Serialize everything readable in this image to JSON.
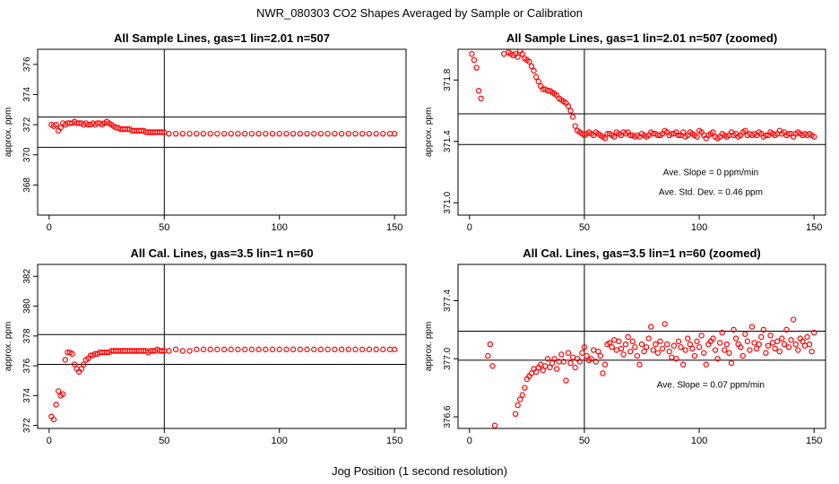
{
  "figure": {
    "title": "NWR_080303  CO2 Shapes Averaged by Sample or Calibration",
    "xlabel": "Jog Position (1 second resolution)"
  },
  "colors": {
    "points": "#ff0000",
    "axes": "#000000",
    "background": "#ffffff"
  },
  "chart_data": [
    {
      "type": "scatter",
      "title": "All Sample Lines, gas=1 lin=2.01 n=507",
      "ylabel": "approx. ppm",
      "xlim": [
        -5,
        155
      ],
      "ylim": [
        366,
        377
      ],
      "xticks": [
        "0",
        "50",
        "100",
        "150"
      ],
      "yticks": [
        "368",
        "370",
        "372",
        "374",
        "376"
      ],
      "vline": 50,
      "hlines": [
        370.5,
        372.5
      ],
      "annotations": [],
      "series": [
        {
          "x": [
            1,
            2,
            3,
            4,
            5,
            6,
            7,
            8,
            9,
            10,
            11,
            12,
            13,
            14,
            15,
            16,
            17,
            18,
            19,
            20,
            21,
            22,
            23,
            24,
            25,
            26,
            27,
            28,
            29,
            30,
            31,
            32,
            33,
            34,
            35,
            36,
            37,
            38,
            39,
            40,
            41,
            42,
            43,
            44,
            45,
            46,
            47,
            48,
            49,
            50,
            52,
            55,
            58,
            61,
            64,
            67,
            70,
            73,
            76,
            79,
            82,
            85,
            88,
            91,
            94,
            97,
            100,
            103,
            106,
            109,
            112,
            115,
            118,
            121,
            124,
            127,
            130,
            133,
            136,
            139,
            142,
            145,
            148,
            150
          ],
          "y": [
            372.0,
            371.9,
            372.0,
            371.6,
            371.8,
            372.1,
            372.0,
            372.1,
            372.1,
            372.1,
            372.2,
            372.1,
            372.1,
            372.1,
            372.0,
            372.1,
            372.0,
            372.0,
            372.1,
            372.0,
            372.1,
            372.1,
            372.0,
            372.1,
            372.2,
            372.1,
            372.0,
            371.9,
            371.8,
            371.8,
            371.7,
            371.7,
            371.7,
            371.7,
            371.7,
            371.6,
            371.6,
            371.6,
            371.6,
            371.6,
            371.6,
            371.5,
            371.5,
            371.5,
            371.5,
            371.5,
            371.5,
            371.5,
            371.5,
            371.5,
            371.4,
            371.4,
            371.4,
            371.4,
            371.4,
            371.4,
            371.4,
            371.4,
            371.4,
            371.4,
            371.4,
            371.4,
            371.4,
            371.4,
            371.4,
            371.4,
            371.4,
            371.4,
            371.4,
            371.4,
            371.4,
            371.4,
            371.4,
            371.4,
            371.4,
            371.4,
            371.4,
            371.4,
            371.4,
            371.4,
            371.4,
            371.4,
            371.4,
            371.4
          ]
        }
      ]
    },
    {
      "type": "scatter",
      "title": "All Sample Lines, gas=1 lin=2.01 n=507 (zoomed)",
      "ylabel": "approx. ppm",
      "xlim": [
        -5,
        155
      ],
      "ylim": [
        370.92,
        372.0
      ],
      "xticks": [
        "0",
        "50",
        "100",
        "150"
      ],
      "yticks": [
        "371.0",
        "371.4",
        "371.8"
      ],
      "vline": 50,
      "hlines": [
        371.38,
        371.58
      ],
      "annotations": [
        {
          "text": "Ave. Slope =  0  ppm/min",
          "x": 105,
          "y": 371.18
        },
        {
          "text": "Ave. Std. Dev. =  0.46  ppm",
          "x": 105,
          "y": 371.05
        }
      ],
      "series": [
        {
          "x": [
            1,
            2,
            3,
            4,
            5,
            15,
            17,
            18,
            19,
            20,
            21,
            22,
            23,
            24,
            25,
            26,
            27,
            28,
            29,
            30,
            31,
            32,
            33,
            34,
            35,
            36,
            37,
            38,
            39,
            40,
            41,
            42,
            43,
            44,
            45,
            46,
            47,
            48,
            49,
            50,
            51,
            52,
            53,
            54,
            55,
            56,
            57,
            58,
            59,
            60,
            61,
            62,
            63,
            64,
            65,
            66,
            67,
            68,
            69,
            70,
            71,
            72,
            73,
            74,
            75,
            76,
            77,
            78,
            79,
            80,
            81,
            82,
            83,
            84,
            85,
            86,
            87,
            88,
            89,
            90,
            91,
            92,
            93,
            94,
            95,
            96,
            97,
            98,
            99,
            100,
            101,
            102,
            103,
            104,
            105,
            106,
            107,
            108,
            109,
            110,
            111,
            112,
            113,
            114,
            115,
            116,
            117,
            118,
            119,
            120,
            121,
            122,
            123,
            124,
            125,
            126,
            127,
            128,
            129,
            130,
            131,
            132,
            133,
            134,
            135,
            136,
            137,
            138,
            139,
            140,
            141,
            142,
            143,
            144,
            145,
            146,
            147,
            148,
            149,
            150
          ],
          "y": [
            371.97,
            371.93,
            371.88,
            371.73,
            371.68,
            371.97,
            371.98,
            371.97,
            371.96,
            371.97,
            371.95,
            371.99,
            371.97,
            371.94,
            371.93,
            371.92,
            371.89,
            371.86,
            371.82,
            371.79,
            371.76,
            371.74,
            371.74,
            371.73,
            371.73,
            371.72,
            371.71,
            371.7,
            371.68,
            371.67,
            371.66,
            371.65,
            371.63,
            371.6,
            371.56,
            371.5,
            371.47,
            371.46,
            371.45,
            371.44,
            371.45,
            371.46,
            371.45,
            371.44,
            371.46,
            371.45,
            371.44,
            371.43,
            371.42,
            371.45,
            371.45,
            371.44,
            371.43,
            371.46,
            371.45,
            371.44,
            371.46,
            371.45,
            371.46,
            371.44,
            371.44,
            371.43,
            371.44,
            371.43,
            371.45,
            371.44,
            371.43,
            371.44,
            371.46,
            371.45,
            371.45,
            371.44,
            371.44,
            371.45,
            371.47,
            371.46,
            371.44,
            371.45,
            371.45,
            371.46,
            371.44,
            371.44,
            371.46,
            371.43,
            371.44,
            371.46,
            371.45,
            371.44,
            371.43,
            371.47,
            371.46,
            371.44,
            371.42,
            371.44,
            371.45,
            371.46,
            371.43,
            371.42,
            371.43,
            371.45,
            371.44,
            371.43,
            371.44,
            371.46,
            371.44,
            371.45,
            371.43,
            371.44,
            371.46,
            371.47,
            371.44,
            371.45,
            371.44,
            371.45,
            371.44,
            371.46,
            371.45,
            371.43,
            371.44,
            371.44,
            371.46,
            371.45,
            371.44,
            371.45,
            371.47,
            371.45,
            371.46,
            371.44,
            371.45,
            371.45,
            371.43,
            371.45,
            371.46,
            371.45,
            371.44,
            371.45,
            371.44,
            371.45,
            371.44,
            371.43
          ]
        }
      ]
    },
    {
      "type": "scatter",
      "title": "All Cal. Lines, gas=3.5 lin=1 n=60",
      "ylabel": "approx. ppm",
      "xlim": [
        -5,
        155
      ],
      "ylim": [
        371.8,
        382.8
      ],
      "xticks": [
        "0",
        "50",
        "100",
        "150"
      ],
      "yticks": [
        "372",
        "374",
        "376",
        "378",
        "380",
        "382"
      ],
      "vline": 50,
      "hlines": [
        376.1,
        378.1
      ],
      "annotations": [],
      "series": [
        {
          "x": [
            1,
            2,
            3,
            4,
            5,
            6,
            7,
            8,
            9,
            10,
            11,
            12,
            13,
            14,
            15,
            16,
            17,
            18,
            19,
            20,
            21,
            22,
            23,
            24,
            25,
            26,
            27,
            28,
            29,
            30,
            31,
            32,
            33,
            34,
            35,
            36,
            37,
            38,
            39,
            40,
            41,
            42,
            43,
            44,
            45,
            46,
            47,
            48,
            49,
            50,
            52,
            55,
            58,
            61,
            64,
            67,
            70,
            73,
            76,
            79,
            82,
            85,
            88,
            91,
            94,
            97,
            100,
            103,
            106,
            109,
            112,
            115,
            118,
            121,
            124,
            127,
            130,
            133,
            136,
            139,
            142,
            145,
            148,
            150
          ],
          "y": [
            372.6,
            372.4,
            373.4,
            374.3,
            374.0,
            374.1,
            376.4,
            376.9,
            376.9,
            376.8,
            376.1,
            375.8,
            375.6,
            375.8,
            376.1,
            376.4,
            376.5,
            376.7,
            376.7,
            376.8,
            376.8,
            376.9,
            376.9,
            376.9,
            376.9,
            376.9,
            377.0,
            377.0,
            377.0,
            377.0,
            377.0,
            377.0,
            377.0,
            377.0,
            377.0,
            377.0,
            377.0,
            377.0,
            377.0,
            377.0,
            377.0,
            377.0,
            376.9,
            377.0,
            377.0,
            377.0,
            377.1,
            377.0,
            377.0,
            377.0,
            377.0,
            377.1,
            377.0,
            377.0,
            377.1,
            377.1,
            377.1,
            377.1,
            377.1,
            377.1,
            377.1,
            377.1,
            377.1,
            377.1,
            377.1,
            377.1,
            377.1,
            377.1,
            377.1,
            377.1,
            377.1,
            377.1,
            377.1,
            377.1,
            377.1,
            377.1,
            377.1,
            377.1,
            377.1,
            377.1,
            377.1,
            377.1,
            377.1,
            377.1
          ]
        }
      ]
    },
    {
      "type": "scatter",
      "title": "All Cal. Lines, gas=3.5 lin=1 n=60 (zoomed)",
      "ylabel": "approx. ppm",
      "xlim": [
        -5,
        155
      ],
      "ylim": [
        376.52,
        377.65
      ],
      "xticks": [
        "0",
        "50",
        "100",
        "150"
      ],
      "yticks": [
        "376.6",
        "377.0",
        "377.4"
      ],
      "vline": 50,
      "hlines": [
        376.99,
        377.19
      ],
      "annotations": [
        {
          "text": "Ave. Slope =  0.07  ppm/min",
          "x": 105,
          "y": 376.8
        }
      ],
      "series": [
        {
          "x": [
            8,
            9,
            10,
            11,
            20,
            21,
            22,
            23,
            24,
            25,
            26,
            27,
            28,
            29,
            30,
            31,
            32,
            33,
            34,
            35,
            36,
            37,
            38,
            39,
            40,
            41,
            42,
            43,
            44,
            45,
            46,
            47,
            48,
            49,
            50,
            51,
            52,
            53,
            54,
            55,
            56,
            57,
            58,
            59,
            60,
            61,
            62,
            63,
            64,
            65,
            66,
            67,
            68,
            69,
            70,
            71,
            72,
            73,
            74,
            75,
            76,
            77,
            78,
            79,
            80,
            81,
            82,
            83,
            84,
            85,
            86,
            87,
            88,
            89,
            90,
            91,
            92,
            93,
            94,
            95,
            96,
            97,
            98,
            99,
            100,
            101,
            102,
            103,
            104,
            105,
            106,
            107,
            108,
            109,
            110,
            111,
            112,
            113,
            114,
            115,
            116,
            117,
            118,
            119,
            120,
            121,
            122,
            123,
            124,
            125,
            126,
            127,
            128,
            129,
            130,
            131,
            132,
            133,
            134,
            135,
            136,
            137,
            138,
            139,
            140,
            141,
            142,
            143,
            144,
            145,
            146,
            147,
            148,
            149,
            150
          ],
          "y": [
            377.02,
            377.1,
            376.95,
            376.54,
            376.62,
            376.68,
            376.72,
            376.75,
            376.8,
            376.86,
            376.88,
            376.9,
            376.93,
            376.91,
            376.94,
            376.96,
            376.92,
            376.95,
            377.0,
            376.94,
            376.97,
            377.0,
            376.93,
            376.98,
            377.03,
            376.98,
            376.85,
            377.04,
            376.97,
            377.01,
            376.94,
            377.0,
            376.98,
            377.04,
            377.08,
            377.02,
            376.99,
            377.0,
            377.06,
            376.98,
            377.05,
            377.02,
            376.9,
            376.96,
            377.1,
            377.11,
            377.08,
            377.13,
            377.06,
            377.12,
            377.07,
            377.03,
            377.1,
            377.15,
            377.05,
            377.12,
            377.08,
            377.02,
            376.96,
            377.1,
            377.05,
            377.08,
            377.14,
            377.22,
            377.06,
            377.1,
            377.04,
            377.12,
            377.07,
            377.24,
            377.1,
            377.05,
            377.01,
            377.09,
            377.0,
            377.12,
            377.08,
            376.96,
            377.06,
            377.14,
            377.1,
            377.07,
            377.02,
            377.12,
            377.08,
            377.16,
            377.04,
            376.96,
            377.1,
            377.12,
            377.14,
            377.06,
            377.0,
            377.11,
            377.18,
            377.06,
            377.1,
            377.04,
            376.97,
            377.2,
            377.14,
            377.1,
            377.08,
            377.02,
            377.17,
            377.12,
            377.06,
            377.22,
            377.11,
            377.07,
            377.1,
            377.15,
            377.2,
            377.04,
            377.09,
            377.16,
            377.11,
            377.07,
            377.12,
            377.05,
            377.14,
            377.1,
            377.2,
            377.08,
            377.13,
            377.27,
            377.1,
            377.06,
            377.14,
            377.12,
            377.09,
            377.15,
            377.1,
            377.05,
            377.18
          ]
        }
      ]
    }
  ]
}
